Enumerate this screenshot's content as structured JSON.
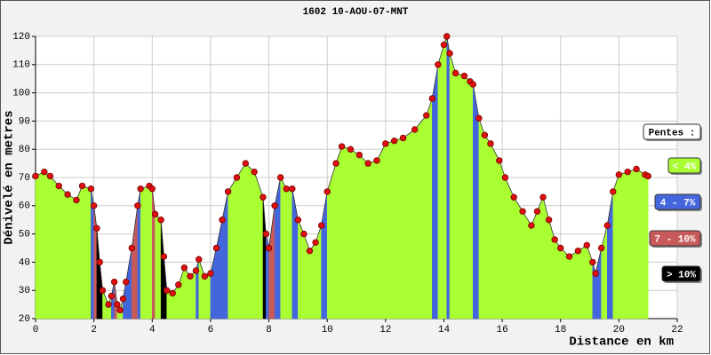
{
  "chart_data": {
    "type": "area",
    "title": "1602 10-AOU-07-MNT",
    "y_label": "Dénivelé en metres",
    "x_label": "Distance en km",
    "xlim": [
      0,
      22
    ],
    "xticks": [
      0,
      2,
      4,
      6,
      8,
      10,
      12,
      14,
      16,
      18,
      20,
      22
    ],
    "ylim": [
      20,
      120
    ],
    "yticks": [
      20,
      30,
      40,
      50,
      60,
      70,
      80,
      90,
      100,
      110,
      120
    ],
    "grid": true,
    "marker_color": "#e01010",
    "x": [
      0,
      0.3,
      0.5,
      0.8,
      1.1,
      1.4,
      1.6,
      1.9,
      2.0,
      2.1,
      2.2,
      2.3,
      2.5,
      2.6,
      2.7,
      2.8,
      2.9,
      3.0,
      3.1,
      3.3,
      3.5,
      3.6,
      3.9,
      4.0,
      4.1,
      4.3,
      4.4,
      4.5,
      4.7,
      4.9,
      5.1,
      5.3,
      5.5,
      5.6,
      5.8,
      6.0,
      6.2,
      6.4,
      6.6,
      6.9,
      7.2,
      7.5,
      7.8,
      7.9,
      8.0,
      8.2,
      8.4,
      8.6,
      8.8,
      9.0,
      9.2,
      9.4,
      9.6,
      9.8,
      10.0,
      10.3,
      10.5,
      10.8,
      11.1,
      11.4,
      11.7,
      12.0,
      12.3,
      12.6,
      13.0,
      13.4,
      13.6,
      13.8,
      14.0,
      14.1,
      14.2,
      14.4,
      14.7,
      14.9,
      15.0,
      15.2,
      15.4,
      15.6,
      15.9,
      16.1,
      16.4,
      16.7,
      17.0,
      17.2,
      17.4,
      17.6,
      17.8,
      18.0,
      18.3,
      18.6,
      18.9,
      19.1,
      19.2,
      19.4,
      19.6,
      19.8,
      20.0,
      20.3,
      20.6,
      20.9,
      21.0
    ],
    "values": [
      70.5,
      72,
      70.5,
      67,
      64,
      62,
      67,
      66,
      60,
      52,
      40,
      30,
      25,
      28,
      33,
      25,
      23,
      27,
      33,
      45,
      60,
      66,
      67,
      66,
      57,
      55,
      42,
      30,
      29,
      32,
      38,
      35,
      37,
      41,
      35,
      36,
      45,
      55,
      65,
      70,
      75,
      72,
      63,
      50,
      45,
      60,
      70,
      66,
      66,
      55,
      50,
      44,
      47,
      53,
      65,
      75,
      81,
      80,
      78,
      75,
      76,
      82,
      83,
      84,
      87,
      92,
      98,
      110,
      117,
      120,
      114,
      107,
      106,
      104,
      103,
      91,
      85,
      82,
      76,
      70,
      63,
      58,
      53,
      58,
      63,
      55,
      48,
      45,
      42,
      44,
      46,
      40,
      36,
      45,
      53,
      65,
      71,
      72,
      73,
      71,
      70.5
    ],
    "legend": {
      "title": "Pentes :",
      "items": [
        {
          "label": "< 4%",
          "max": 4,
          "color": "#aaff33"
        },
        {
          "label": "4 - 7%",
          "max": 7,
          "color": "#4466dd"
        },
        {
          "label": "7 - 10%",
          "max": 10,
          "color": "#c85a5a"
        },
        {
          "label": "> 10%",
          "color": "#000000"
        }
      ]
    }
  }
}
